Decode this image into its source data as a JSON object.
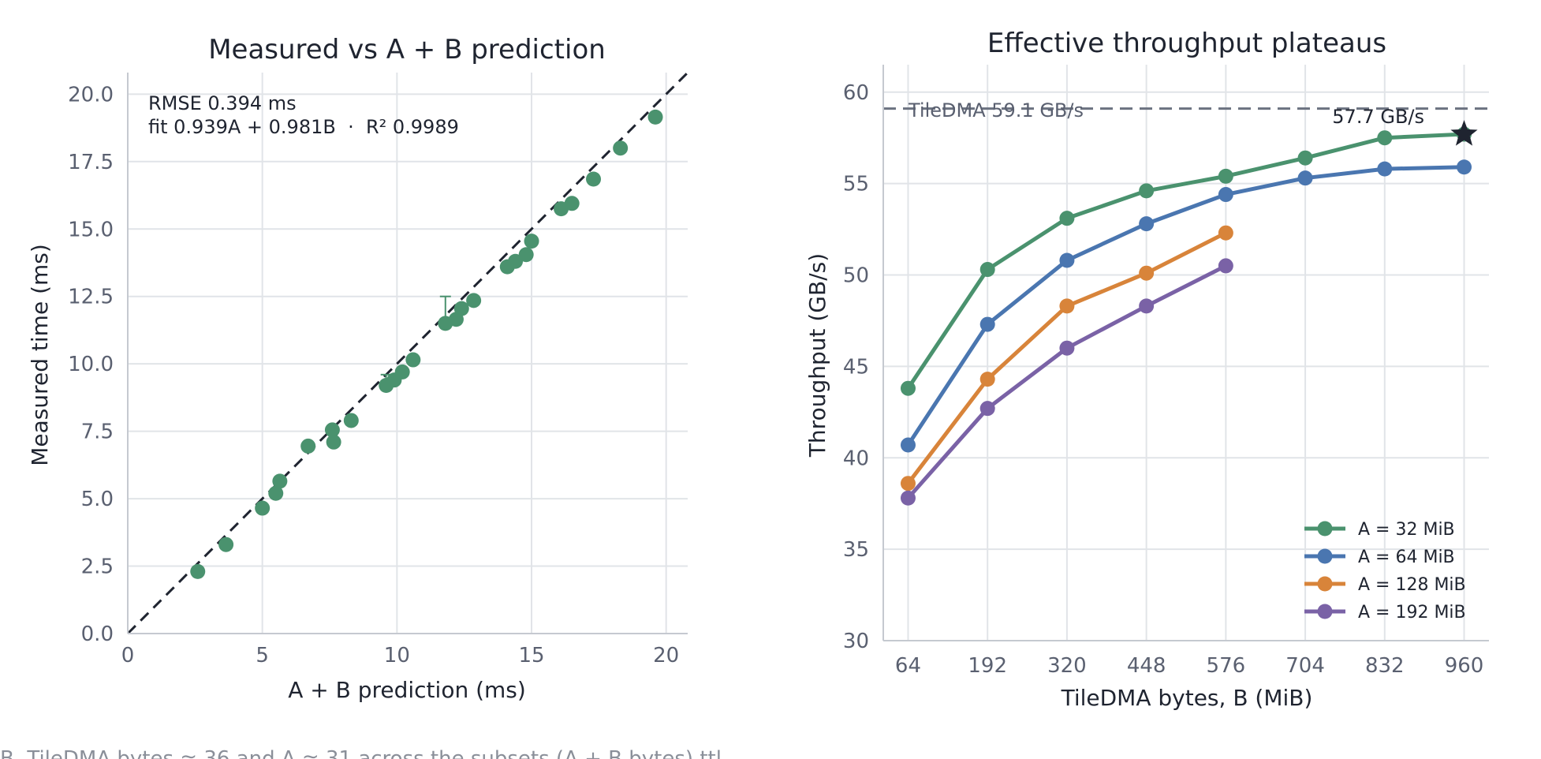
{
  "colors": {
    "green": "#4a926e",
    "blue": "#4a76b0",
    "orange": "#d8843a",
    "purple": "#7a62a6",
    "grid": "#e1e4e8",
    "axis": "#c5c9d0",
    "refline": "#6b7280",
    "diagonal": "#1f2430"
  },
  "caption": "B, TileDMA bytes ≈ 36 and A ≈ 31 across the subsets (A + B bytes) ttl…",
  "chart_data": [
    {
      "type": "scatter",
      "title": "Measured vs A + B prediction",
      "xlabel": "A + B prediction (ms)",
      "ylabel": "Measured time (ms)",
      "xlim": [
        0,
        20.8
      ],
      "ylim": [
        0,
        20.8
      ],
      "xticks": [
        0,
        5,
        10,
        15,
        20
      ],
      "xtick_labels": [
        "0",
        "5",
        "10",
        "15",
        "20"
      ],
      "yticks": [
        0,
        2.5,
        5,
        7.5,
        10,
        12.5,
        15,
        17.5,
        20
      ],
      "ytick_labels": [
        "0.0",
        "2.5",
        "5.0",
        "7.5",
        "10.0",
        "12.5",
        "15.0",
        "17.5",
        "20.0"
      ],
      "grid": true,
      "annotations": [
        "RMSE 0.394 ms",
        "fit 0.939A + 0.981B  ·  R² 0.9989"
      ],
      "reference_line": "y = x",
      "error_bars": [
        {
          "x": 11.8,
          "low": 11.5,
          "high": 12.5
        },
        {
          "x": 9.6,
          "low": 9.2,
          "high": 9.6
        }
      ],
      "points": [
        {
          "x": 2.6,
          "y": 2.3
        },
        {
          "x": 3.65,
          "y": 3.3
        },
        {
          "x": 5.0,
          "y": 4.65
        },
        {
          "x": 5.5,
          "y": 5.2
        },
        {
          "x": 5.65,
          "y": 5.65
        },
        {
          "x": 6.7,
          "y": 6.95
        },
        {
          "x": 7.6,
          "y": 7.55
        },
        {
          "x": 7.65,
          "y": 7.1
        },
        {
          "x": 8.3,
          "y": 7.9
        },
        {
          "x": 9.6,
          "y": 9.2
        },
        {
          "x": 9.9,
          "y": 9.4
        },
        {
          "x": 10.2,
          "y": 9.7
        },
        {
          "x": 10.6,
          "y": 10.15
        },
        {
          "x": 11.8,
          "y": 11.5
        },
        {
          "x": 12.2,
          "y": 11.65
        },
        {
          "x": 12.4,
          "y": 12.05
        },
        {
          "x": 12.85,
          "y": 12.35
        },
        {
          "x": 14.1,
          "y": 13.6
        },
        {
          "x": 14.4,
          "y": 13.8
        },
        {
          "x": 14.8,
          "y": 14.05
        },
        {
          "x": 15.0,
          "y": 14.55
        },
        {
          "x": 16.1,
          "y": 15.75
        },
        {
          "x": 16.5,
          "y": 15.95
        },
        {
          "x": 17.3,
          "y": 16.85
        },
        {
          "x": 18.3,
          "y": 18.0
        },
        {
          "x": 19.6,
          "y": 19.15
        }
      ]
    },
    {
      "type": "line",
      "title": "Effective throughput plateaus",
      "xlabel": "TileDMA bytes, B (MiB)",
      "ylabel": "Throughput (GB/s)",
      "x": [
        64,
        192,
        320,
        448,
        576,
        704,
        832,
        960
      ],
      "xlim": [
        24,
        1000
      ],
      "ylim": [
        30,
        61.5
      ],
      "yticks": [
        30,
        35,
        40,
        45,
        50,
        55,
        60
      ],
      "grid": true,
      "legend_position": "bottom-right",
      "reference_line": {
        "y": 59.1,
        "label": "TileDMA 59.1 GB/s"
      },
      "peak": {
        "x": 960,
        "y": 57.7,
        "label": "57.7 GB/s"
      },
      "series": [
        {
          "name": "A = 32 MiB",
          "color": "#4a926e",
          "x": [
            64,
            192,
            320,
            448,
            576,
            704,
            832,
            960
          ],
          "values": [
            43.8,
            50.3,
            53.1,
            54.6,
            55.4,
            56.4,
            57.5,
            57.7
          ]
        },
        {
          "name": "A = 64 MiB",
          "color": "#4a76b0",
          "x": [
            64,
            192,
            320,
            448,
            576,
            704,
            832,
            960
          ],
          "values": [
            40.7,
            47.3,
            50.8,
            52.8,
            54.4,
            55.3,
            55.8,
            55.9
          ]
        },
        {
          "name": "A = 128 MiB",
          "color": "#d8843a",
          "x": [
            64,
            192,
            320,
            448,
            576
          ],
          "values": [
            38.6,
            44.3,
            48.3,
            50.1,
            52.3
          ]
        },
        {
          "name": "A = 192 MiB",
          "color": "#7a62a6",
          "x": [
            64,
            192,
            320,
            448,
            576
          ],
          "values": [
            37.8,
            42.7,
            46.0,
            48.3,
            50.5
          ]
        }
      ]
    }
  ]
}
